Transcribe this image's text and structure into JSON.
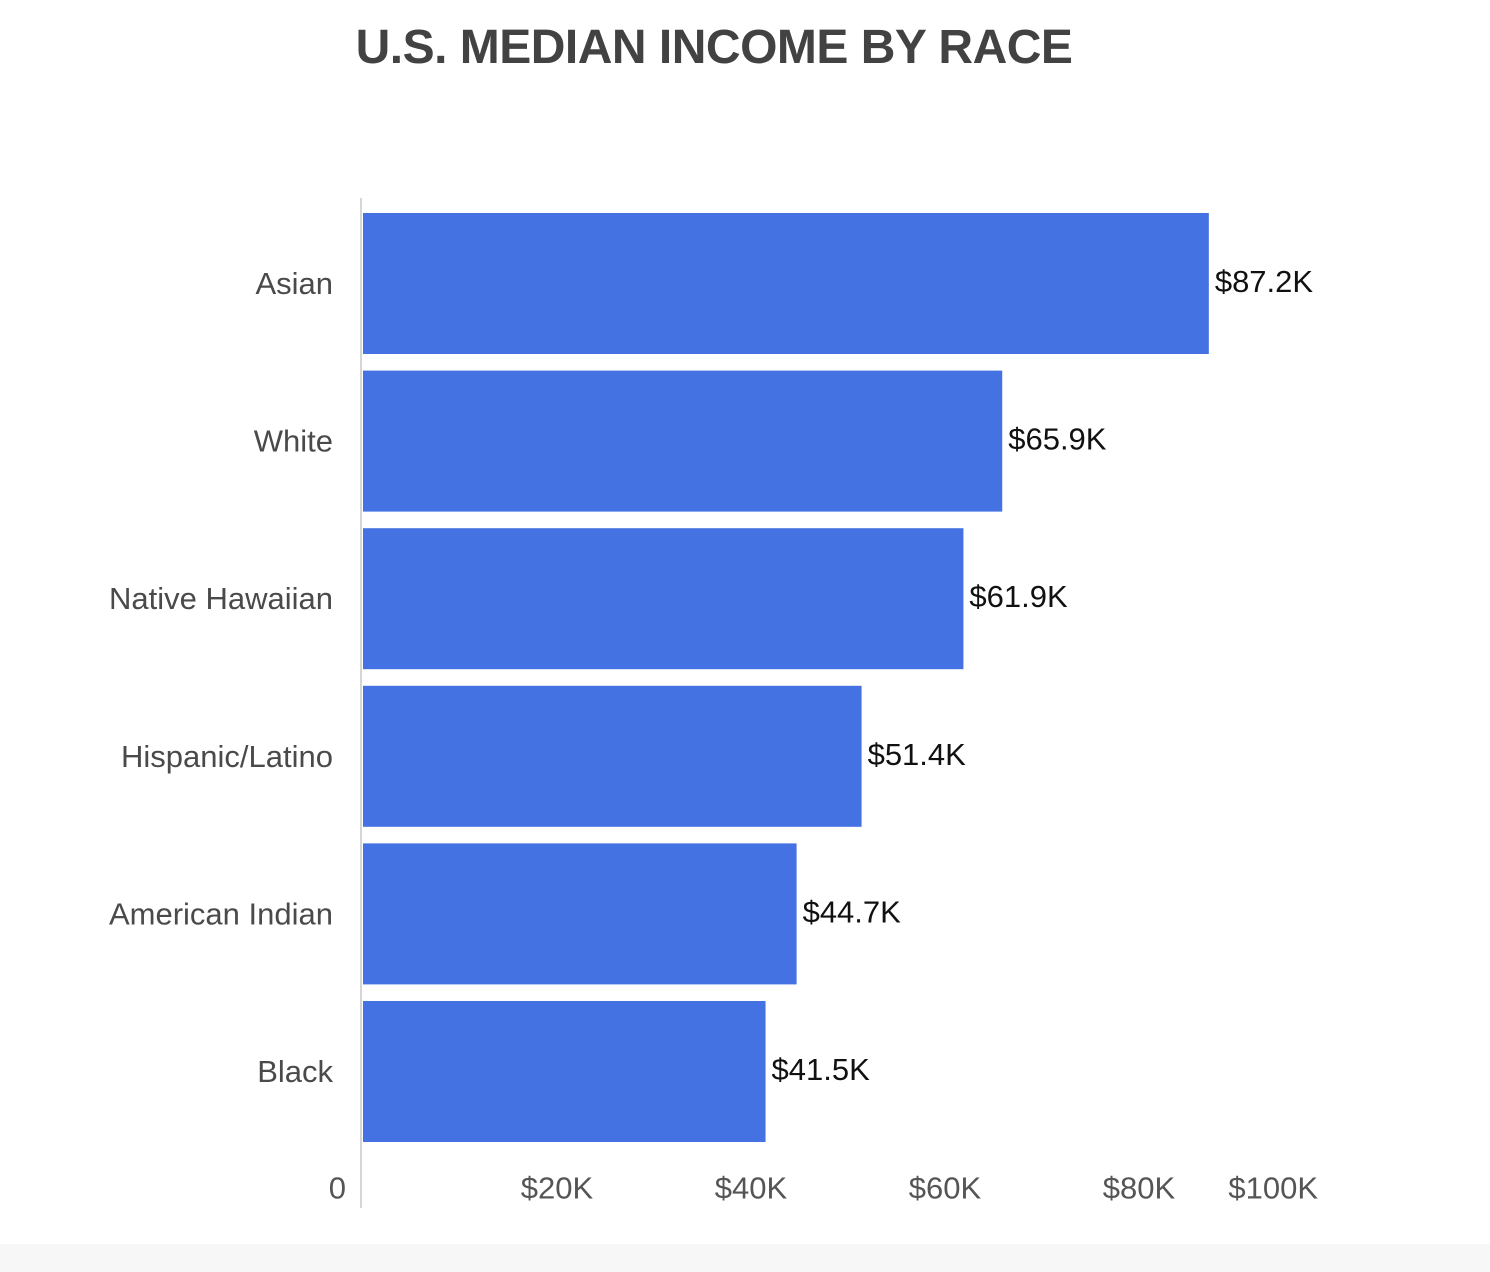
{
  "chart_data": {
    "type": "bar",
    "orientation": "horizontal",
    "title": "U.S. MEDIAN INCOME BY RACE",
    "categories": [
      "Asian",
      "White",
      "Native Hawaiian",
      "Hispanic/Latino",
      "American Indian",
      "Black"
    ],
    "values": [
      87.2,
      65.9,
      61.9,
      51.4,
      44.7,
      41.5
    ],
    "value_labels": [
      "$87.2K",
      "$65.9K",
      "$61.9K",
      "$51.4K",
      "$44.7K",
      "$41.5K"
    ],
    "xticks": [
      0,
      20,
      40,
      60,
      80,
      100
    ],
    "xtick_labels": [
      "0",
      "$20K",
      "$40K",
      "$60K",
      "$80K",
      "$100K"
    ],
    "xlim": [
      0,
      100
    ],
    "grid": false,
    "bar_color": "#4472E2"
  }
}
